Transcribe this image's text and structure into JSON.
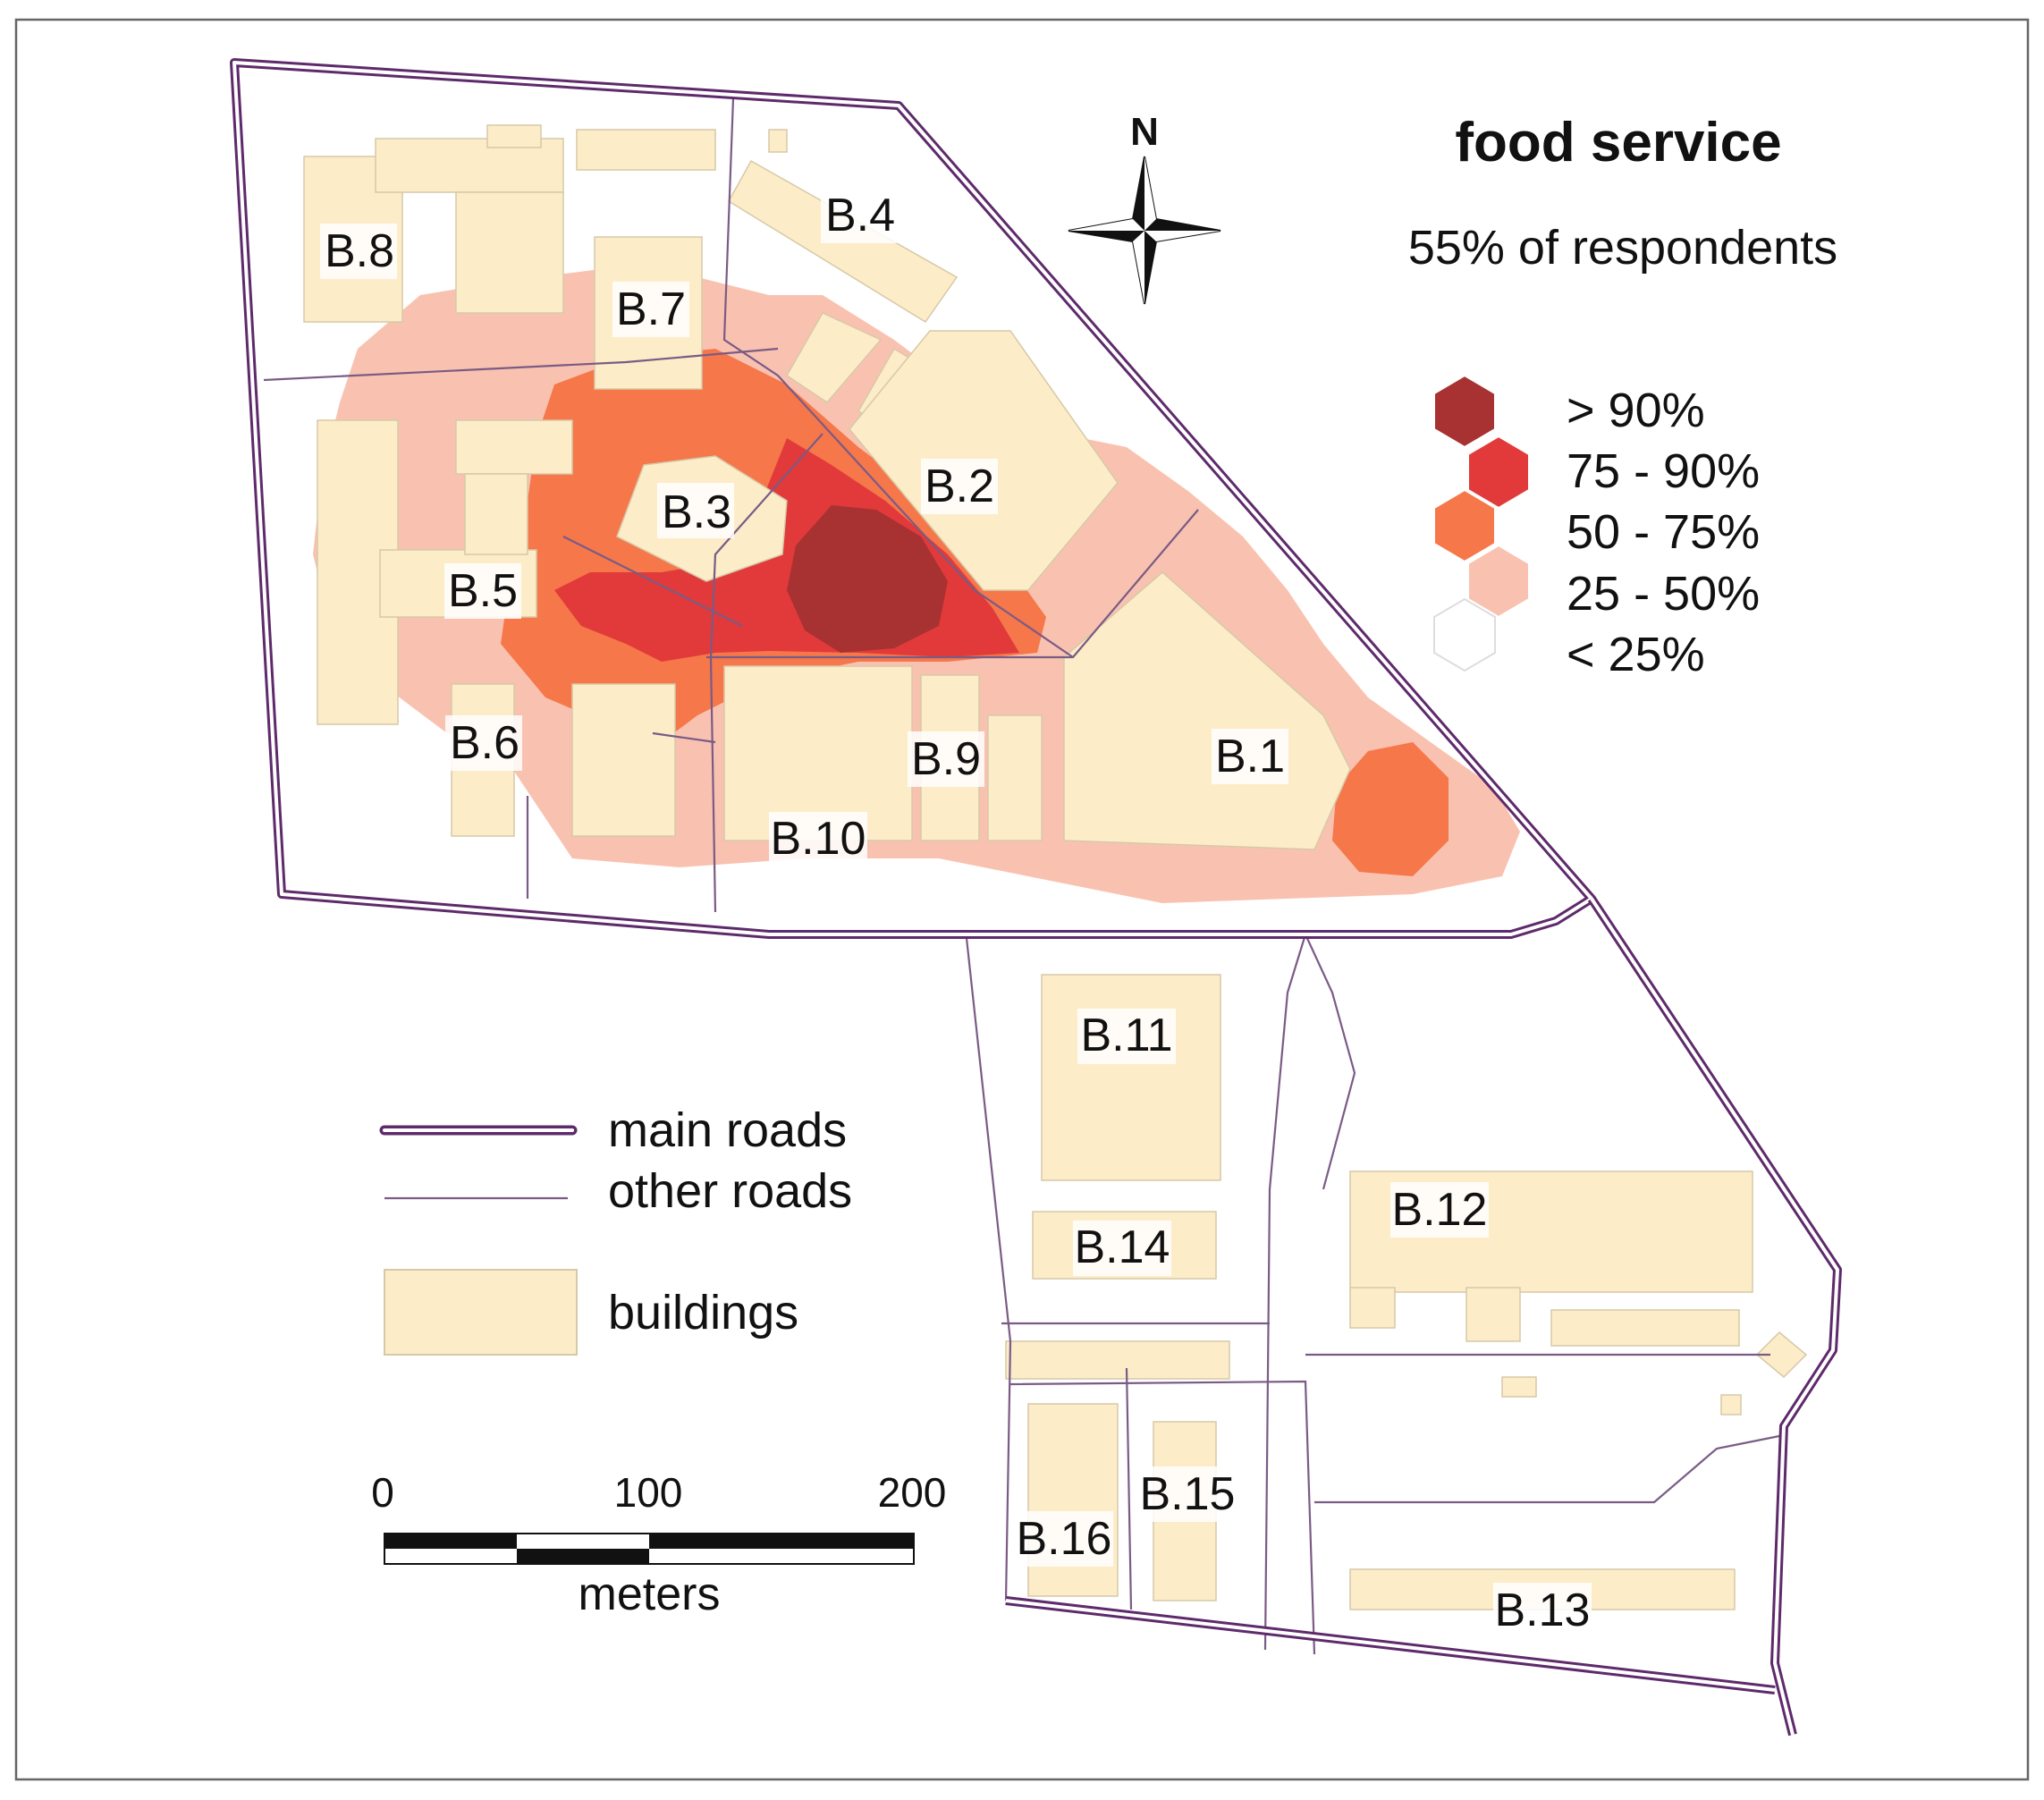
{
  "title": "food service",
  "subtitle": "55% of respondents",
  "north_label": "N",
  "class_legend": [
    {
      "label": "> 90%",
      "color": "#a83232"
    },
    {
      "label": "75 - 90%",
      "color": "#e23a3a"
    },
    {
      "label": "50 - 75%",
      "color": "#f5774a"
    },
    {
      "label": "25 - 50%",
      "color": "#f9c2b0"
    },
    {
      "label": "< 25%",
      "color": "#ffffff"
    }
  ],
  "feature_legend": {
    "main_roads": "main roads",
    "other_roads": "other roads",
    "buildings": "buildings"
  },
  "scale_bar": {
    "ticks": [
      "0",
      "100",
      "200"
    ],
    "unit": "meters"
  },
  "buildings": [
    "B.1",
    "B.2",
    "B.3",
    "B.4",
    "B.5",
    "B.6",
    "B.7",
    "B.8",
    "B.9",
    "B.10",
    "B.11",
    "B.12",
    "B.13",
    "B.14",
    "B.15",
    "B.16"
  ],
  "colors": {
    "main_road": "#5e2a6b",
    "other_road": "#7a5b85",
    "building": "#fdecc8"
  }
}
